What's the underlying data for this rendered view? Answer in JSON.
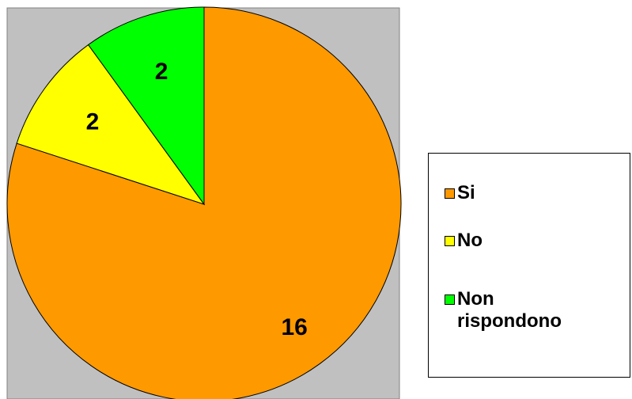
{
  "chart_data": {
    "type": "pie",
    "categories": [
      "Si",
      "No",
      "Non rispondono"
    ],
    "values": [
      16,
      2,
      2
    ],
    "colors": [
      "#ff9900",
      "#ffff00",
      "#00ff00"
    ],
    "legend": "right"
  }
}
